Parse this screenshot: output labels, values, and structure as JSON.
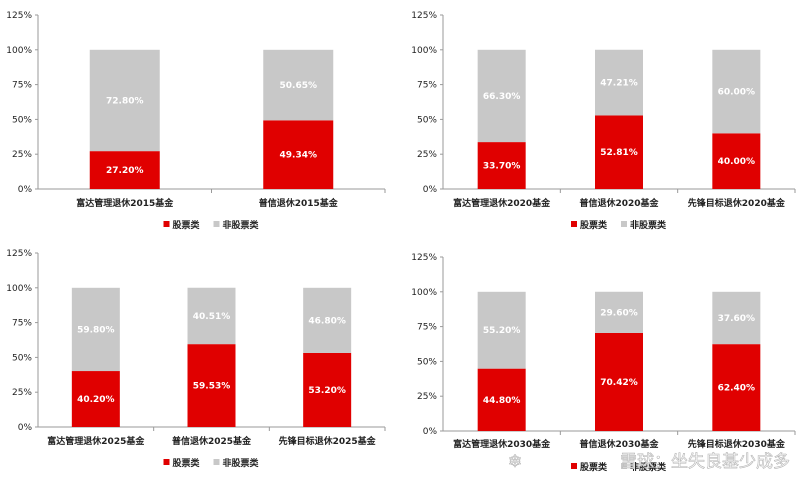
{
  "colors": {
    "stock": "#e00000",
    "non_stock": "#c8c8c8",
    "axis": "#9a9a9a"
  },
  "watermark": {
    "logo": "❄",
    "text": "雪球：坐失良基少成多"
  },
  "chart_data": [
    {
      "type": "bar",
      "stacked": true,
      "ylim": [
        0,
        125
      ],
      "yticks": [
        "0%",
        "25%",
        "50%",
        "75%",
        "100%",
        "125%"
      ],
      "categories": [
        "富达管理退休2015基金",
        "普信退休2015基金"
      ],
      "series": [
        {
          "name": "股票类",
          "values": [
            27.2,
            49.34
          ],
          "labels": [
            "27.20%",
            "49.34%"
          ]
        },
        {
          "name": "非股票类",
          "values": [
            72.8,
            50.65
          ],
          "labels": [
            "72.80%",
            "50.65%"
          ]
        }
      ],
      "legend": "bottom-center"
    },
    {
      "type": "bar",
      "stacked": true,
      "ylim": [
        0,
        125
      ],
      "yticks": [
        "0%",
        "25%",
        "50%",
        "75%",
        "100%",
        "125%"
      ],
      "categories": [
        "富达管理退休2020基金",
        "普信退休2020基金",
        "先锋目标退休2020基金"
      ],
      "series": [
        {
          "name": "股票类",
          "values": [
            33.7,
            52.81,
            40.0
          ],
          "labels": [
            "33.70%",
            "52.81%",
            "40.00%"
          ]
        },
        {
          "name": "非股票类",
          "values": [
            66.3,
            47.21,
            60.0
          ],
          "labels": [
            "66.30%",
            "47.21%",
            "60.00%"
          ]
        }
      ],
      "legend": "bottom-center"
    },
    {
      "type": "bar",
      "stacked": true,
      "ylim": [
        0,
        125
      ],
      "yticks": [
        "0%",
        "25%",
        "50%",
        "75%",
        "100%",
        "125%"
      ],
      "categories": [
        "富达管理退休2025基金",
        "普信退休2025基金",
        "先锋目标退休2025基金"
      ],
      "series": [
        {
          "name": "股票类",
          "values": [
            40.2,
            59.53,
            53.2
          ],
          "labels": [
            "40.20%",
            "59.53%",
            "53.20%"
          ]
        },
        {
          "name": "非股票类",
          "values": [
            59.8,
            40.51,
            46.8
          ],
          "labels": [
            "59.80%",
            "40.51%",
            "46.80%"
          ]
        }
      ],
      "legend": "bottom-center"
    },
    {
      "type": "bar",
      "stacked": true,
      "ylim": [
        0,
        125
      ],
      "yticks": [
        "0%",
        "25%",
        "50%",
        "75%",
        "100%",
        "125%"
      ],
      "categories": [
        "富达管理退休2030基金",
        "普信退休2030基金",
        "先锋目标退休2030基金"
      ],
      "series": [
        {
          "name": "股票类",
          "values": [
            44.8,
            70.42,
            62.4
          ],
          "labels": [
            "44.80%",
            "70.42%",
            "62.40%"
          ]
        },
        {
          "name": "非股票类",
          "values": [
            55.2,
            29.6,
            37.6
          ],
          "labels": [
            "55.20%",
            "29.60%",
            "37.60%"
          ]
        }
      ],
      "legend": "bottom-center"
    }
  ]
}
